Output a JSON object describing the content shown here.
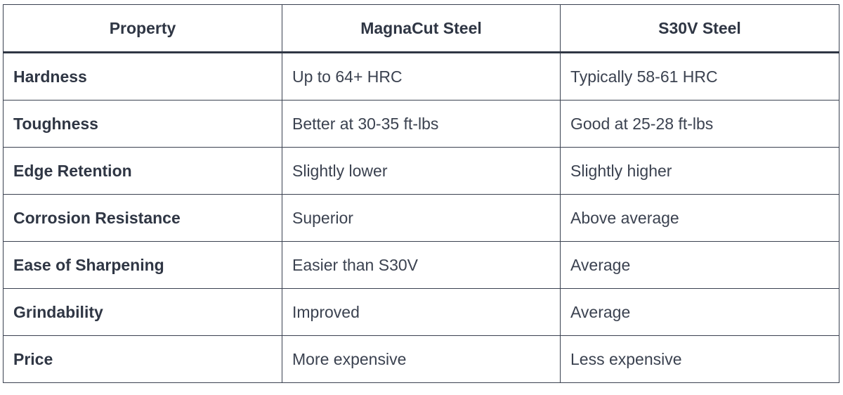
{
  "table": {
    "headers": [
      "Property",
      "MagnaCut Steel",
      "S30V Steel"
    ],
    "rows": [
      [
        "Hardness",
        "Up to 64+ HRC",
        "Typically 58-61 HRC"
      ],
      [
        "Toughness",
        "Better at 30-35 ft-lbs",
        "Good at 25-28 ft-lbs"
      ],
      [
        "Edge Retention",
        "Slightly lower",
        "Slightly higher"
      ],
      [
        "Corrosion Resistance",
        "Superior",
        "Above average"
      ],
      [
        "Ease of Sharpening",
        "Easier than S30V",
        "Average"
      ],
      [
        "Grindability",
        "Improved",
        "Average"
      ],
      [
        "Price",
        "More expensive",
        "Less expensive"
      ]
    ]
  }
}
